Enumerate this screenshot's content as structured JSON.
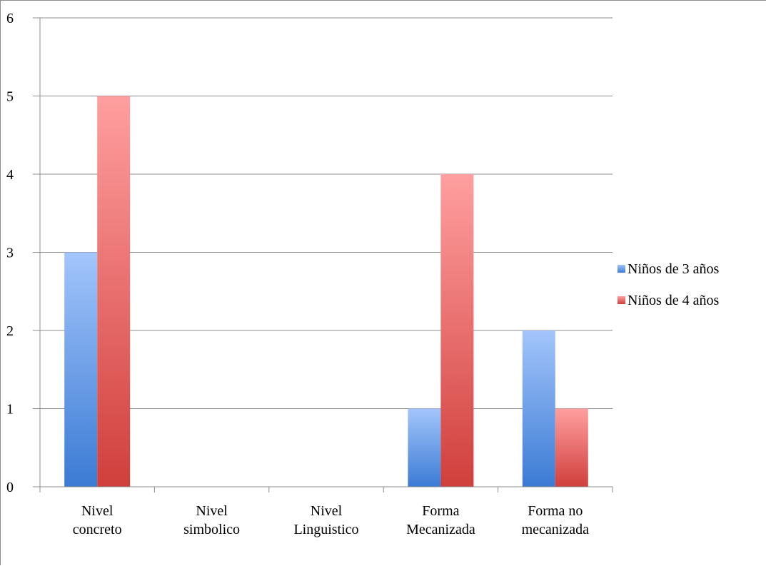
{
  "chart_data": {
    "type": "bar",
    "categories": [
      [
        "Nivel",
        "concreto"
      ],
      [
        "Nivel",
        "simbolico"
      ],
      [
        "Nivel",
        "Linguistico"
      ],
      [
        "Forma",
        "Mecanizada"
      ],
      [
        "Forma no",
        "mecanizada"
      ]
    ],
    "series": [
      {
        "name": "Niños de 3 años",
        "values": [
          3,
          0,
          0,
          1,
          2
        ],
        "color_top": "#a3c5fb",
        "color_bottom": "#3b7bd4"
      },
      {
        "name": "Niños de 4 años",
        "values": [
          5,
          0,
          0,
          4,
          1
        ],
        "color_top": "#ff9f9f",
        "color_bottom": "#d03f3c"
      }
    ],
    "ylim": [
      0,
      6
    ],
    "yticks": [
      0,
      1,
      2,
      3,
      4,
      5,
      6
    ],
    "grid": true,
    "legend_position": "right",
    "title": "",
    "xlabel": "",
    "ylabel": ""
  }
}
